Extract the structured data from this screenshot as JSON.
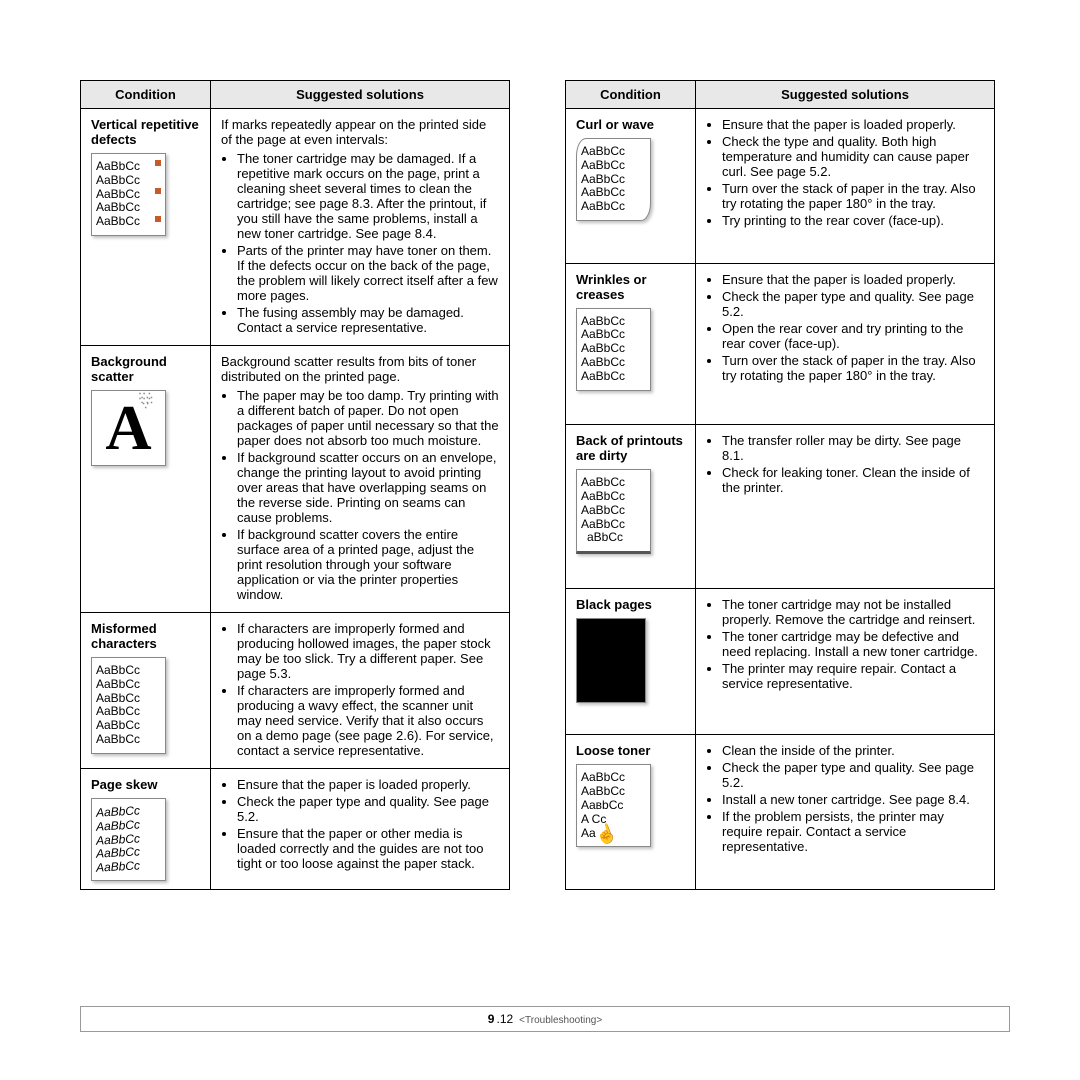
{
  "headers": {
    "condition": "Condition",
    "solutions": "Suggested solutions"
  },
  "sample_text": "AaBbCc",
  "left": [
    {
      "title": "Vertical repetitive defects",
      "sample_type": "defects",
      "intro": "If marks repeatedly appear on the printed side of the page at even intervals:",
      "bullets": [
        "The toner cartridge may be damaged. If a repetitive mark occurs on the page, print a cleaning sheet several times to clean the cartridge; see page 8.3. After the printout, if you still have the same problems, install a new toner cartridge. See page 8.4.",
        "Parts of the printer may have toner on them. If the defects occur on the back of the page, the problem will likely correct itself after a few more pages.",
        "The fusing assembly may be damaged. Contact a service representative."
      ]
    },
    {
      "title": "Background scatter",
      "sample_type": "scatter",
      "intro": "Background scatter results from bits of toner distributed on the printed page.",
      "bullets": [
        "The paper may be too damp. Try printing with a different batch of paper. Do not open packages of paper until necessary so that the paper does not absorb too much moisture.",
        "If background scatter occurs on an envelope, change the printing layout to avoid printing over areas that have overlapping seams on the reverse side. Printing on seams can cause problems.",
        "If background scatter covers the entire surface area of a printed page, adjust the print resolution through your software application or via the printer properties window."
      ]
    },
    {
      "title": "Misformed characters",
      "sample_type": "misformed",
      "bullets": [
        "If characters are improperly formed and producing hollowed images, the paper stock may be too slick. Try a different paper. See page 5.3.",
        "If characters are improperly formed and producing a wavy effect, the scanner unit may need service. Verify that it also occurs on a demo page (see page 2.6). For service, contact a service representative."
      ]
    },
    {
      "title": "Page skew",
      "sample_type": "skew",
      "bullets": [
        "Ensure that the paper is loaded properly.",
        "Check the paper type and quality. See page 5.2.",
        "Ensure that the paper or other media is loaded correctly and the guides are not too tight or too loose against the paper stack."
      ]
    }
  ],
  "right": [
    {
      "title": "Curl or wave",
      "sample_type": "curl",
      "bullets": [
        "Ensure that the paper is loaded properly.",
        "Check the type and quality. Both high temperature and humidity can cause paper curl. See page 5.2.",
        "Turn over the stack of paper in the tray. Also try rotating the paper 180° in the tray.",
        "Try printing to the rear cover (face-up)."
      ]
    },
    {
      "title": "Wrinkles or creases",
      "sample_type": "wrinkle",
      "bullets": [
        "Ensure that the paper is loaded properly.",
        "Check the paper type and quality. See page 5.2.",
        "Open the rear cover and try printing to the rear cover (face-up).",
        "Turn over the stack of paper in the tray. Also try rotating the paper 180° in the tray."
      ]
    },
    {
      "title": "Back of printouts are dirty",
      "sample_type": "dirty",
      "bullets": [
        "The transfer roller may be dirty. See page 8.1.",
        "Check for leaking toner. Clean the inside of the printer."
      ]
    },
    {
      "title": "Black pages",
      "sample_type": "black",
      "bullets": [
        "The toner cartridge may not be installed properly. Remove the cartridge and reinsert.",
        "The toner cartridge may be defective and need replacing. Install a new toner cartridge.",
        "The printer may require repair. Contact a service representative."
      ]
    },
    {
      "title": "Loose toner",
      "sample_type": "loose",
      "bullets": [
        "Clean the inside of the printer.",
        "Check the paper type and quality. See page 5.2.",
        "Install a new toner cartridge. See page 8.4.",
        "If the problem persists, the printer may require repair. Contact a service representative."
      ]
    }
  ],
  "footer": {
    "page_prefix": "9",
    "page_num": ".12",
    "chapter": "<Troubleshooting>"
  }
}
